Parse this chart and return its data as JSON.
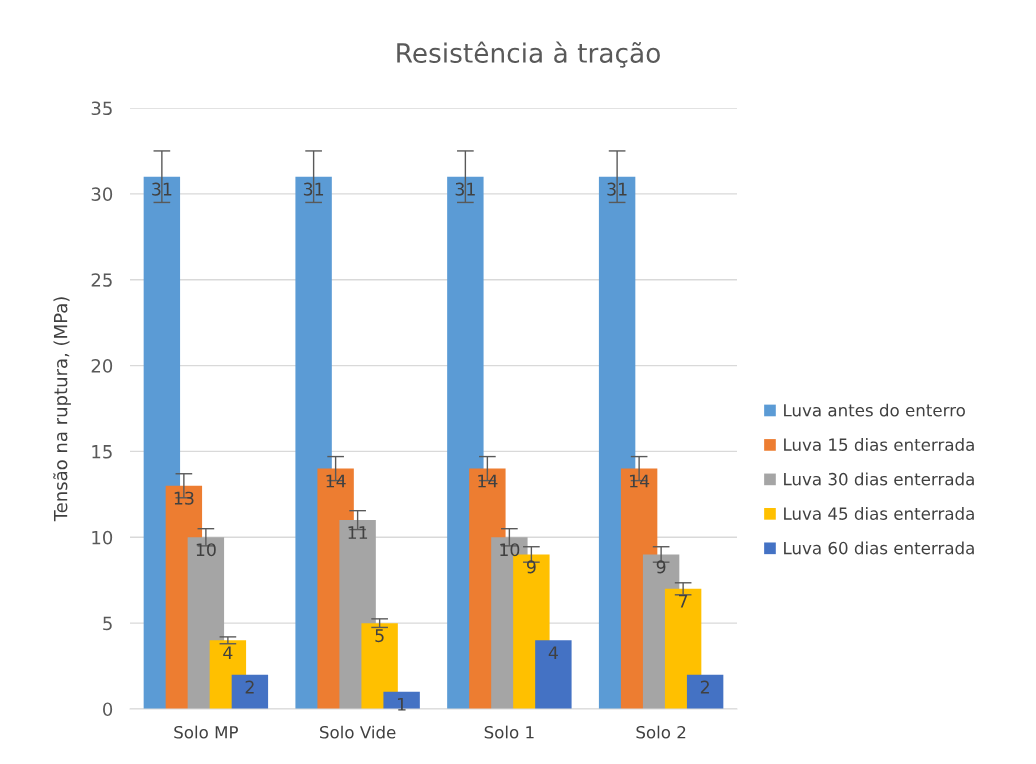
{
  "chart_data": {
    "type": "bar",
    "title": "Resistência à tração",
    "ylabel": "Tensão na ruptura, (MPa)",
    "categories": [
      "Solo MP",
      "Solo Vide",
      "Solo 1",
      "Solo 2"
    ],
    "series": [
      {
        "name": "Luva antes do enterro",
        "color": "#5b9bd5",
        "values": [
          31,
          31,
          31,
          31
        ],
        "errors": [
          1.5,
          1.5,
          1.5,
          1.5
        ]
      },
      {
        "name": "Luva 15 dias enterrada",
        "color": "#ed7d31",
        "values": [
          13,
          14,
          14,
          14
        ],
        "errors": [
          0.7,
          0.7,
          0.7,
          0.7
        ]
      },
      {
        "name": "Luva 30 dias enterrada",
        "color": "#a5a5a5",
        "values": [
          10,
          11,
          10,
          9
        ],
        "errors": [
          0.5,
          0.55,
          0.5,
          0.45
        ]
      },
      {
        "name": "Luva 45 dias enterrada",
        "color": "#ffc000",
        "values": [
          4,
          5,
          9,
          7
        ],
        "errors": [
          0.2,
          0.25,
          0.45,
          0.35
        ]
      },
      {
        "name": "Luva 60 dias enterrada",
        "color": "#4472c4",
        "values": [
          2,
          1,
          4,
          2
        ]
      }
    ],
    "ylim": [
      0,
      35
    ],
    "yticks": [
      0,
      5,
      10,
      15,
      20,
      25,
      30,
      35
    ],
    "grid": "y",
    "legend": "right",
    "data_labels": true
  }
}
